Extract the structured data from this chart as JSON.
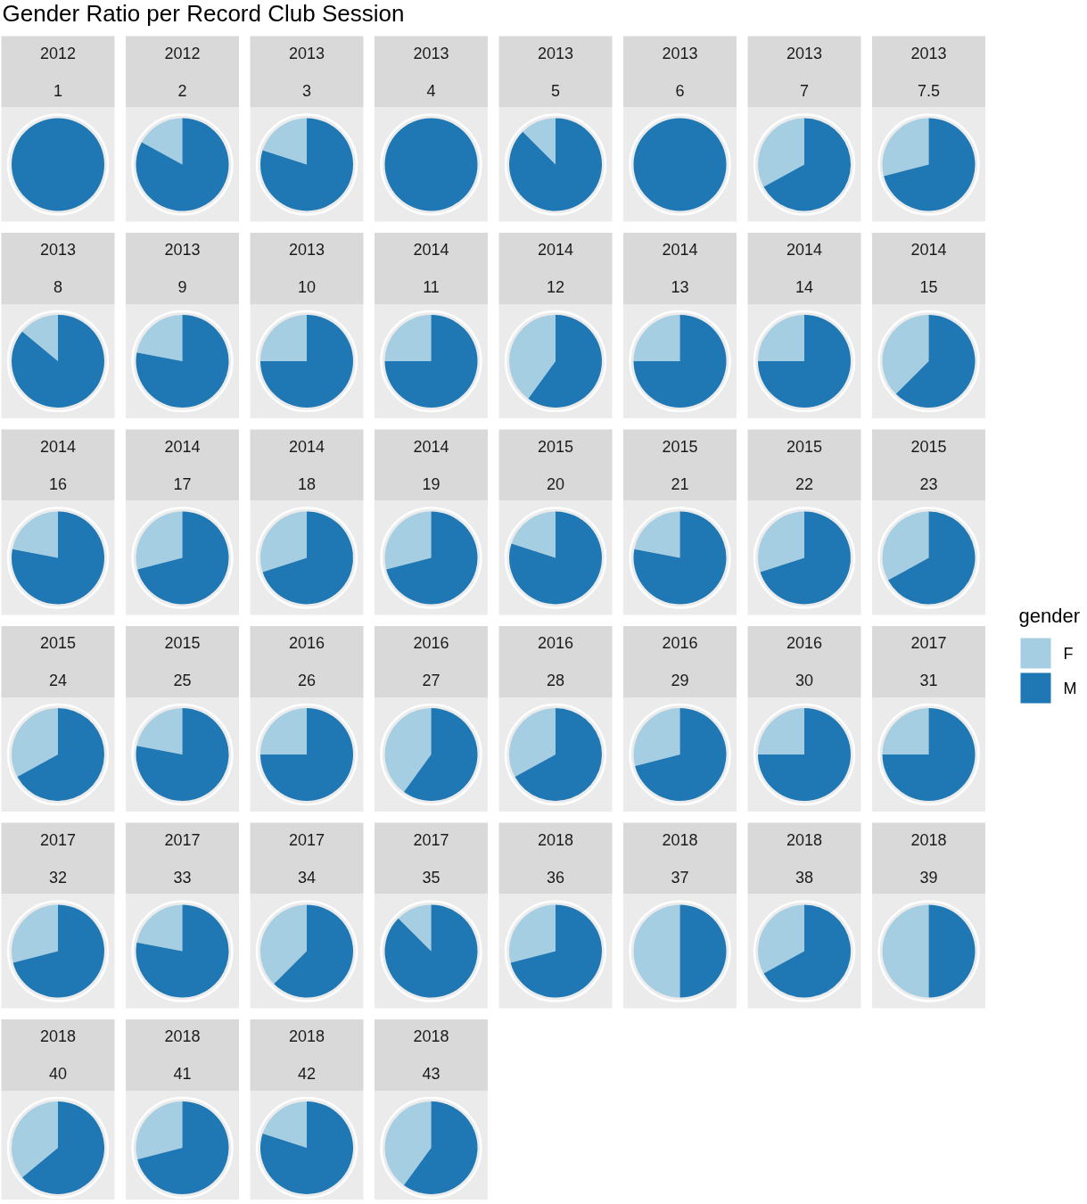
{
  "chart_data": {
    "type": "pie",
    "title": "Gender Ratio per Record Club Session",
    "legend_title": "gender",
    "legend": "right",
    "categories": [
      "F",
      "M"
    ],
    "colors": [
      "#a6cee3",
      "#1f78b4"
    ],
    "series": [
      {
        "name": "2012\n1",
        "values": [
          0,
          100
        ]
      },
      {
        "name": "2012\n2",
        "values": [
          17,
          83
        ]
      },
      {
        "name": "2013\n3",
        "values": [
          20,
          80
        ]
      },
      {
        "name": "2013\n4",
        "values": [
          0,
          100
        ]
      },
      {
        "name": "2013\n5",
        "values": [
          12.5,
          87.5
        ]
      },
      {
        "name": "2013\n6",
        "values": [
          0,
          100
        ]
      },
      {
        "name": "2013\n7",
        "values": [
          33,
          67
        ]
      },
      {
        "name": "2013\n7.5",
        "values": [
          29,
          71
        ]
      },
      {
        "name": "2013\n8",
        "values": [
          14,
          86
        ]
      },
      {
        "name": "2013\n9",
        "values": [
          22,
          78
        ]
      },
      {
        "name": "2013\n10",
        "values": [
          25,
          75
        ]
      },
      {
        "name": "2014\n11",
        "values": [
          25,
          75
        ]
      },
      {
        "name": "2014\n12",
        "values": [
          40,
          60
        ]
      },
      {
        "name": "2014\n13",
        "values": [
          25,
          75
        ]
      },
      {
        "name": "2014\n14",
        "values": [
          25,
          75
        ]
      },
      {
        "name": "2014\n15",
        "values": [
          37.5,
          62.5
        ]
      },
      {
        "name": "2014\n16",
        "values": [
          22,
          78
        ]
      },
      {
        "name": "2014\n17",
        "values": [
          29,
          71
        ]
      },
      {
        "name": "2014\n18",
        "values": [
          30,
          70
        ]
      },
      {
        "name": "2014\n19",
        "values": [
          29,
          71
        ]
      },
      {
        "name": "2015\n20",
        "values": [
          20,
          80
        ]
      },
      {
        "name": "2015\n21",
        "values": [
          22,
          78
        ]
      },
      {
        "name": "2015\n22",
        "values": [
          30,
          70
        ]
      },
      {
        "name": "2015\n23",
        "values": [
          33,
          67
        ]
      },
      {
        "name": "2015\n24",
        "values": [
          33,
          67
        ]
      },
      {
        "name": "2015\n25",
        "values": [
          22,
          78
        ]
      },
      {
        "name": "2016\n26",
        "values": [
          25,
          75
        ]
      },
      {
        "name": "2016\n27",
        "values": [
          40,
          60
        ]
      },
      {
        "name": "2016\n28",
        "values": [
          33,
          67
        ]
      },
      {
        "name": "2016\n29",
        "values": [
          29,
          71
        ]
      },
      {
        "name": "2016\n30",
        "values": [
          25,
          75
        ]
      },
      {
        "name": "2017\n31",
        "values": [
          25,
          75
        ]
      },
      {
        "name": "2017\n32",
        "values": [
          29,
          71
        ]
      },
      {
        "name": "2017\n33",
        "values": [
          22,
          78
        ]
      },
      {
        "name": "2017\n34",
        "values": [
          37.5,
          62.5
        ]
      },
      {
        "name": "2017\n35",
        "values": [
          12.5,
          87.5
        ]
      },
      {
        "name": "2018\n36",
        "values": [
          29,
          71
        ]
      },
      {
        "name": "2018\n37",
        "values": [
          50,
          50
        ]
      },
      {
        "name": "2018\n38",
        "values": [
          33,
          67
        ]
      },
      {
        "name": "2018\n39",
        "values": [
          50,
          50
        ]
      },
      {
        "name": "2018\n40",
        "values": [
          36,
          64
        ]
      },
      {
        "name": "2018\n41",
        "values": [
          29,
          71
        ]
      },
      {
        "name": "2018\n42",
        "values": [
          20,
          80
        ]
      },
      {
        "name": "2018\n43",
        "values": [
          40,
          60
        ]
      }
    ]
  }
}
